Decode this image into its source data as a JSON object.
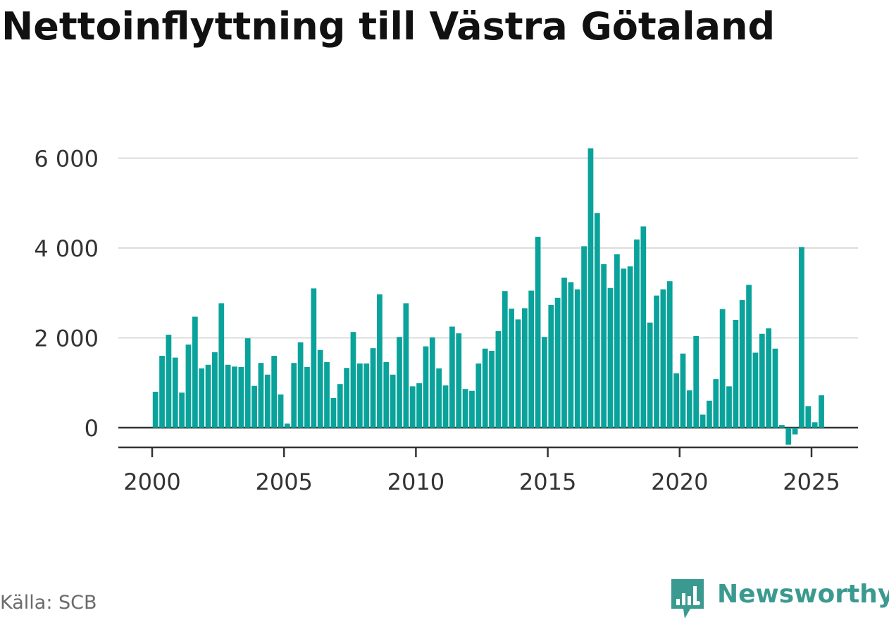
{
  "title": "Nettoinflyttning till Västra Götaland",
  "source": "Källa: SCB",
  "brand": {
    "name": "Newsworthy",
    "icon": "newsworthy-logo-icon",
    "color": "#3a9a90"
  },
  "colors": {
    "bar": "#0aa39b",
    "grid": "#dcdcdc",
    "axis": "#333333",
    "text": "#333333"
  },
  "chart_data": {
    "type": "bar",
    "title": "Nettoinflyttning till Västra Götaland",
    "xlabel": "",
    "ylabel": "",
    "ylim": [
      -450,
      6300
    ],
    "yticks": [
      0,
      2000,
      4000,
      6000
    ],
    "ytick_labels": [
      "0",
      "2 000",
      "4 000",
      "6 000"
    ],
    "xticks": [
      2000,
      2005,
      2010,
      2015,
      2020,
      2025
    ],
    "xtick_labels": [
      "2000",
      "2005",
      "2010",
      "2015",
      "2020",
      "2025"
    ],
    "grid": true,
    "frequency": "quarterly",
    "start": "2000-Q1",
    "values": [
      800,
      1600,
      2070,
      1560,
      780,
      1850,
      2470,
      1320,
      1400,
      1680,
      2770,
      1400,
      1360,
      1350,
      1990,
      930,
      1440,
      1180,
      1600,
      740,
      90,
      1440,
      1900,
      1350,
      3100,
      1730,
      1460,
      660,
      970,
      1330,
      2130,
      1430,
      1430,
      1770,
      2970,
      1460,
      1180,
      2020,
      2770,
      920,
      990,
      1810,
      2010,
      1320,
      940,
      2250,
      2100,
      860,
      820,
      1430,
      1760,
      1710,
      2150,
      3040,
      2650,
      2410,
      2660,
      3050,
      4250,
      2020,
      2730,
      2890,
      3340,
      3240,
      3080,
      4040,
      6220,
      4780,
      3640,
      3110,
      3860,
      3540,
      3590,
      4190,
      4480,
      2340,
      2940,
      3080,
      3260,
      1210,
      1650,
      830,
      2040,
      290,
      600,
      1080,
      2640,
      920,
      2400,
      2840,
      3180,
      1670,
      2090,
      2210,
      1760,
      60,
      -380,
      -150,
      4020,
      480,
      120,
      720
    ]
  }
}
